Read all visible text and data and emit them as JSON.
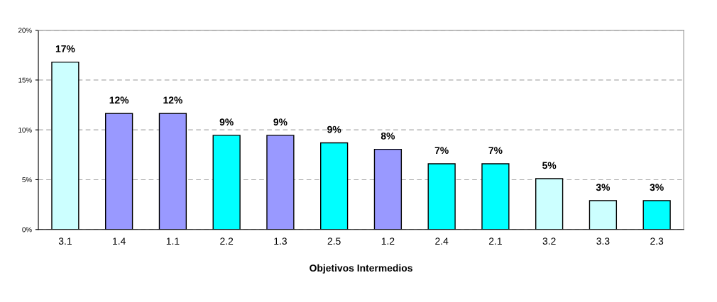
{
  "chart_data": {
    "type": "bar",
    "xlabel": "Objetivos Intermedios",
    "categories": [
      "3.1",
      "1.4",
      "1.1",
      "2.2",
      "1.3",
      "2.5",
      "1.2",
      "2.4",
      "2.1",
      "3.2",
      "3.3",
      "2.3"
    ],
    "values": [
      16.8,
      11.65,
      11.65,
      9.45,
      9.45,
      8.7,
      8.05,
      6.6,
      6.6,
      5.1,
      2.9,
      2.9
    ],
    "colors": [
      "#ccffff",
      "#9999ff",
      "#9999ff",
      "#00ffff",
      "#9999ff",
      "#00ffff",
      "#9999ff",
      "#00ffff",
      "#00ffff",
      "#ccffff",
      "#ccffff",
      "#00ffff"
    ],
    "value_labels": [
      "17%",
      "12%",
      "12%",
      "9%",
      "9%",
      "9%",
      "8%",
      "7%",
      "7%",
      "5%",
      "3%",
      "3%"
    ],
    "ylim": [
      0,
      20
    ],
    "yticks": [
      {
        "value": 0,
        "label": "0%"
      },
      {
        "value": 5,
        "label": "5%"
      },
      {
        "value": 10,
        "label": "10%"
      },
      {
        "value": 15,
        "label": "15%"
      },
      {
        "value": 20,
        "label": "20%"
      }
    ],
    "grid": "y",
    "legend": false
  }
}
